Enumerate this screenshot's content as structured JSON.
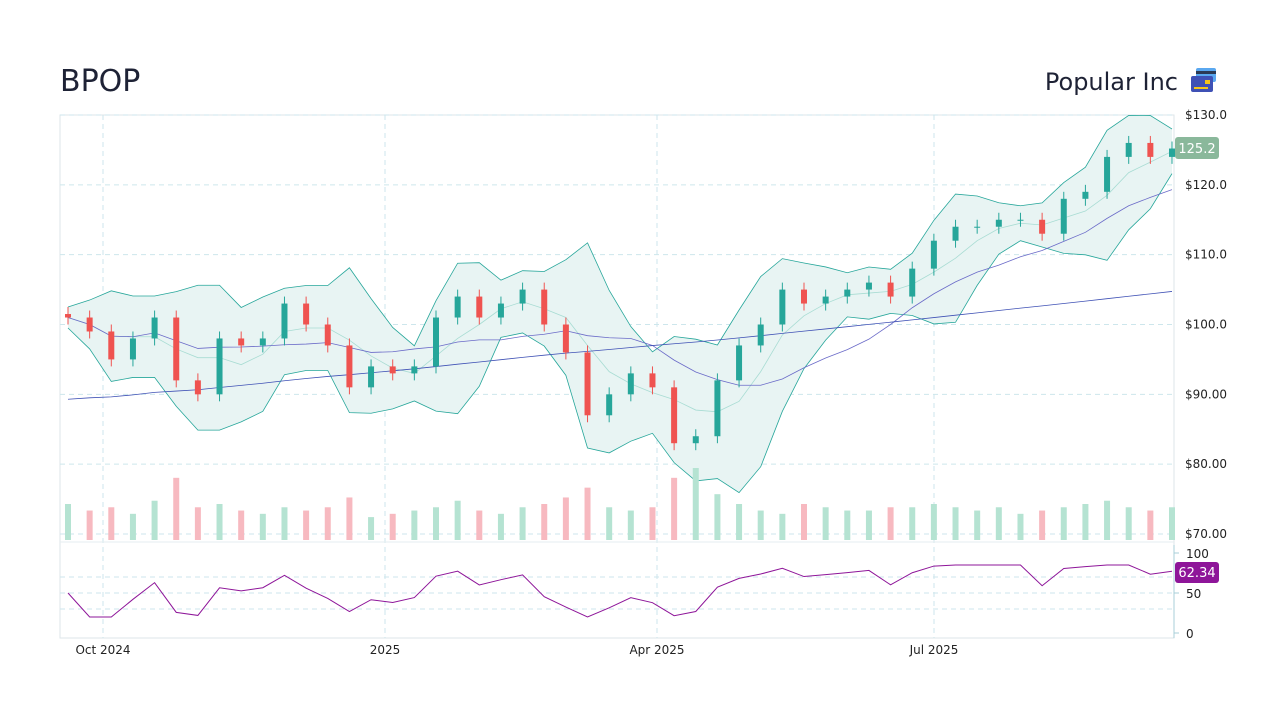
{
  "header": {
    "ticker": "BPOP",
    "company": "Popular Inc",
    "logo_icon": "credit-card-icon"
  },
  "colors": {
    "up": "#26a69a",
    "down": "#ef5350",
    "band": "#26a69a",
    "rsi": "#8e1599",
    "last_price_bg": "#8ab89b"
  },
  "chart_data": {
    "type": "candlestick",
    "title": "BPOP",
    "x_ticks": [
      "Oct 2024",
      "2025",
      "Apr 2025",
      "Jul 2025"
    ],
    "y_ticks": [
      "$130.0",
      "$120.0",
      "$110.0",
      "$100.0",
      "$90.00",
      "$80.00",
      "$70.00"
    ],
    "ylim": [
      70,
      130
    ],
    "grid": true,
    "last_price": "125.2",
    "dates": [
      "2024-09-16",
      "2024-09-23",
      "2024-09-30",
      "2024-10-07",
      "2024-10-14",
      "2024-10-21",
      "2024-10-28",
      "2024-11-04",
      "2024-11-11",
      "2024-11-18",
      "2024-11-25",
      "2024-12-02",
      "2024-12-09",
      "2024-12-16",
      "2024-12-23",
      "2024-12-30",
      "2025-01-06",
      "2025-01-13",
      "2025-01-20",
      "2025-01-27",
      "2025-02-03",
      "2025-02-10",
      "2025-02-17",
      "2025-02-24",
      "2025-03-03",
      "2025-03-10",
      "2025-03-17",
      "2025-03-24",
      "2025-03-31",
      "2025-04-07",
      "2025-04-14",
      "2025-04-21",
      "2025-04-28",
      "2025-05-05",
      "2025-05-12",
      "2025-05-19",
      "2025-05-26",
      "2025-06-02",
      "2025-06-09",
      "2025-06-16",
      "2025-06-23",
      "2025-06-30",
      "2025-07-07",
      "2025-07-14",
      "2025-07-21",
      "2025-07-28",
      "2025-08-04",
      "2025-08-11",
      "2025-08-18",
      "2025-08-25",
      "2025-09-01",
      "2025-09-08"
    ],
    "close": [
      101,
      99,
      95,
      98,
      101,
      92,
      90,
      98,
      97,
      98,
      103,
      100,
      97,
      91,
      94,
      93,
      94,
      101,
      104,
      101,
      103,
      105,
      100,
      96,
      87,
      90,
      93,
      91,
      83,
      84,
      92,
      97,
      100,
      105,
      103,
      104,
      105,
      106,
      104,
      108,
      112,
      114,
      114,
      115,
      115,
      113,
      118,
      119,
      124,
      126,
      124,
      125.2
    ],
    "volume": [
      1.1,
      0.9,
      1.0,
      0.8,
      1.2,
      1.9,
      1.0,
      1.1,
      0.9,
      0.8,
      1.0,
      0.9,
      1.0,
      1.3,
      0.7,
      0.8,
      0.9,
      1.0,
      1.2,
      0.9,
      0.8,
      1.0,
      1.1,
      1.3,
      1.6,
      1.0,
      0.9,
      1.0,
      1.9,
      2.2,
      1.4,
      1.1,
      0.9,
      0.8,
      1.1,
      1.0,
      0.9,
      0.9,
      1.0,
      1.0,
      1.1,
      1.0,
      0.9,
      1.0,
      0.8,
      0.9,
      1.0,
      1.1,
      1.2,
      1.0,
      0.9,
      1.0
    ],
    "rsi": {
      "ticks": [
        "100",
        "50",
        "0"
      ],
      "last": "62.34"
    }
  }
}
